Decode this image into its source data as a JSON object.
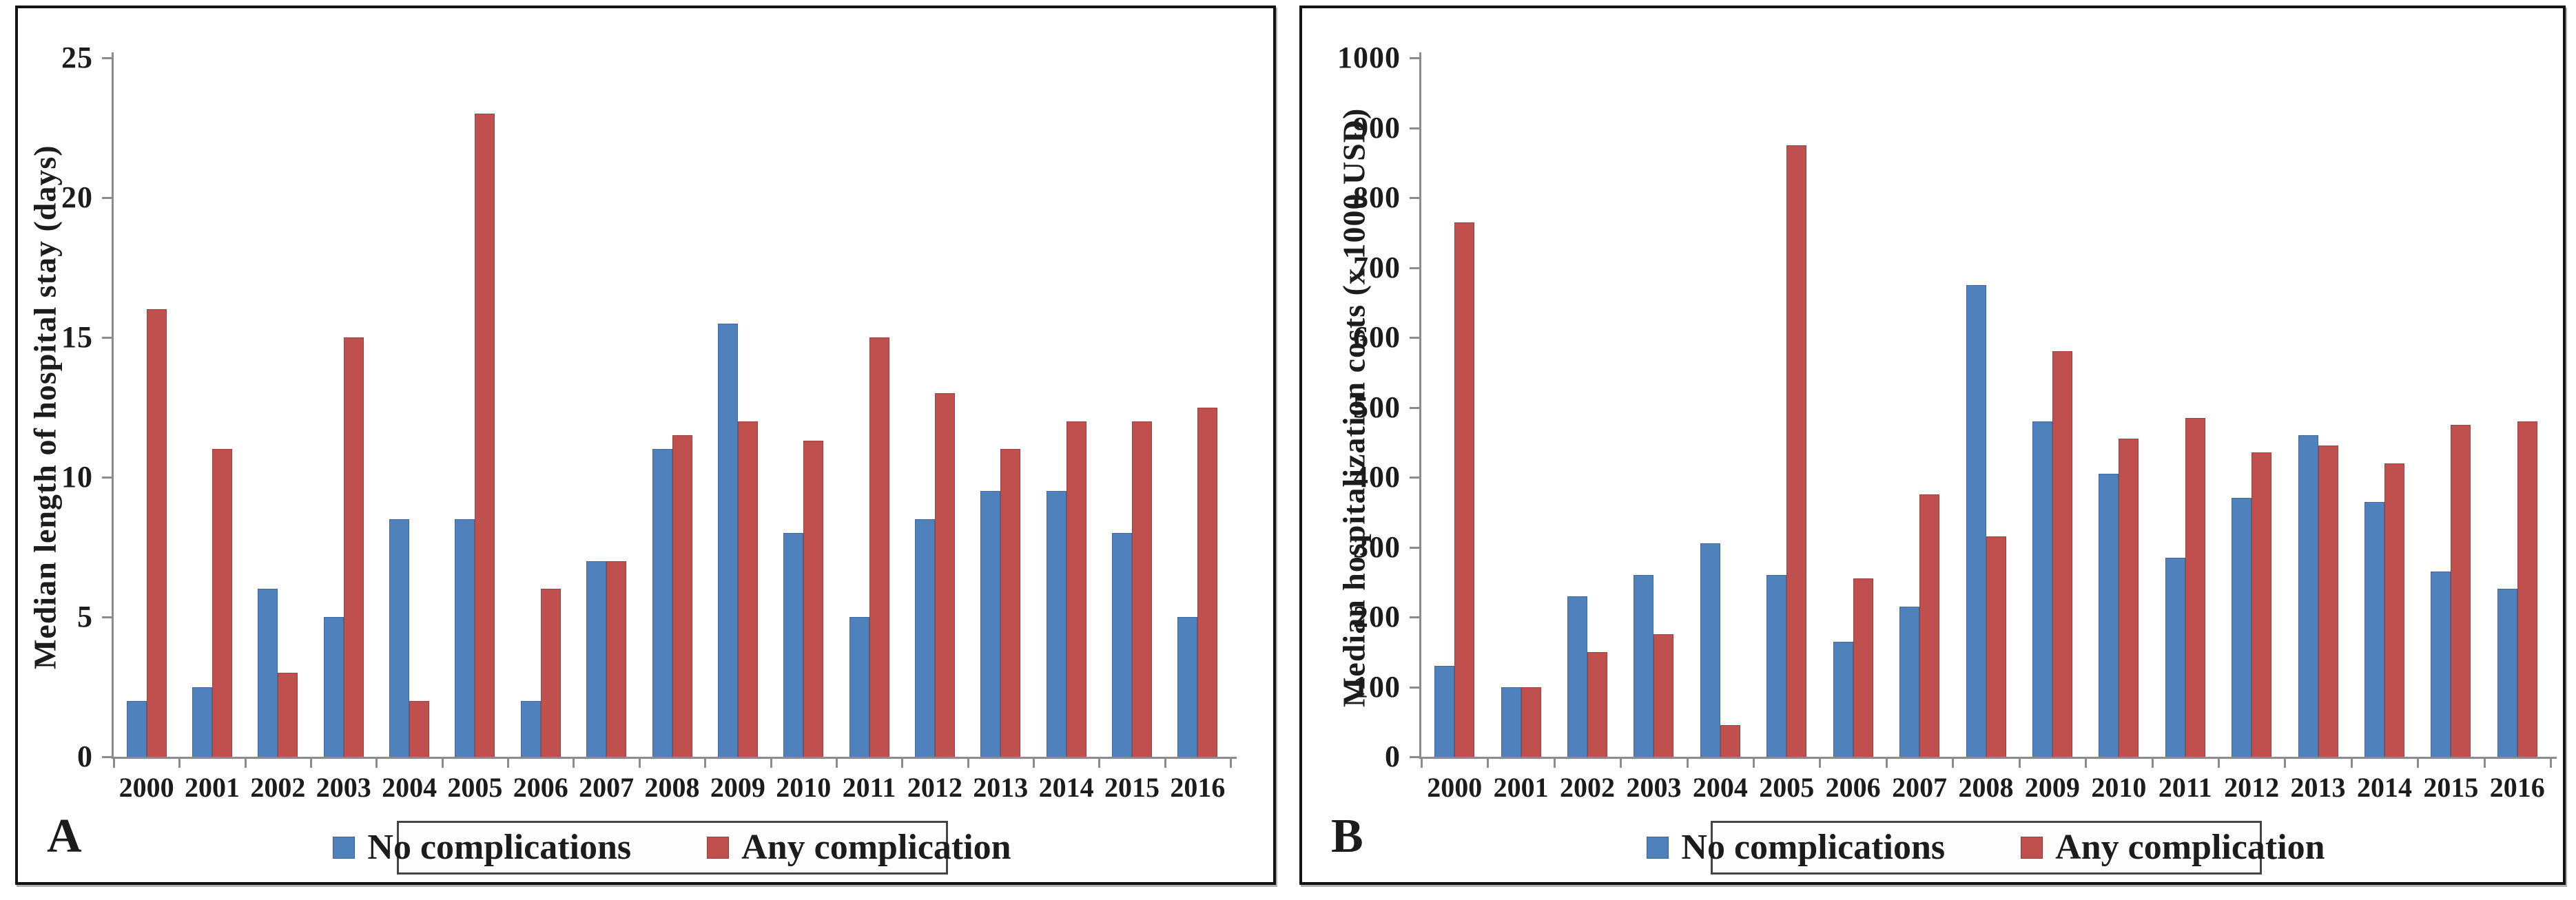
{
  "figure": {
    "description": "Two-panel grouped bar chart comparing outcomes by year",
    "panel_letters": [
      "A",
      "B"
    ],
    "years": [
      "2000",
      "2001",
      "2002",
      "2003",
      "2004",
      "2005",
      "2006",
      "2007",
      "2008",
      "2009",
      "2010",
      "2011",
      "2012",
      "2013",
      "2014",
      "2015",
      "2016"
    ]
  },
  "colors": {
    "no_complications_blue": "#4F81BD",
    "any_complication_red": "#C0504D",
    "axis_gray": "#8C8C8C",
    "text": "#1C1C1C"
  },
  "legend": {
    "items": [
      {
        "label": "No complications",
        "color": "#4F81BD"
      },
      {
        "label": "Any complication",
        "color": "#C0504D"
      }
    ]
  },
  "chart_data": [
    {
      "type": "bar",
      "panel_letter": "A",
      "title": "",
      "xlabel": "",
      "ylabel": "Median length of hospital stay (days)",
      "ylim": [
        0,
        25
      ],
      "yticks": [
        0,
        5,
        10,
        15,
        20,
        25
      ],
      "grid": false,
      "legend_position": "bottom",
      "categories": [
        "2000",
        "2001",
        "2002",
        "2003",
        "2004",
        "2005",
        "2006",
        "2007",
        "2008",
        "2009",
        "2010",
        "2011",
        "2012",
        "2013",
        "2014",
        "2015",
        "2016"
      ],
      "series": [
        {
          "name": "No complications",
          "color": "#4F81BD",
          "values": [
            2,
            2.5,
            6,
            5,
            8.5,
            8.5,
            2,
            7,
            11,
            15.5,
            8,
            5,
            8.5,
            9.5,
            9.5,
            8,
            5
          ]
        },
        {
          "name": "Any complication",
          "color": "#C0504D",
          "values": [
            16,
            11,
            3,
            15,
            2,
            23,
            6,
            7,
            11.5,
            12,
            11.3,
            15,
            13,
            11,
            12,
            12,
            12.5
          ]
        }
      ]
    },
    {
      "type": "bar",
      "panel_letter": "B",
      "title": "",
      "xlabel": "",
      "ylabel": "Median hospitalization costs (x 1000 USD)",
      "ylim": [
        0,
        1000
      ],
      "yticks": [
        0,
        100,
        200,
        300,
        400,
        500,
        600,
        700,
        800,
        900,
        1000
      ],
      "grid": false,
      "legend_position": "bottom",
      "categories": [
        "2000",
        "2001",
        "2002",
        "2003",
        "2004",
        "2005",
        "2006",
        "2007",
        "2008",
        "2009",
        "2010",
        "2011",
        "2012",
        "2013",
        "2014",
        "2015",
        "2016"
      ],
      "series": [
        {
          "name": "No complications",
          "color": "#4F81BD",
          "values": [
            130,
            100,
            230,
            260,
            305,
            260,
            165,
            215,
            675,
            480,
            405,
            285,
            370,
            460,
            365,
            265,
            240
          ]
        },
        {
          "name": "Any complication",
          "color": "#C0504D",
          "values": [
            765,
            100,
            150,
            175,
            45,
            875,
            255,
            375,
            315,
            580,
            455,
            485,
            435,
            445,
            420,
            475,
            480
          ]
        }
      ]
    }
  ]
}
